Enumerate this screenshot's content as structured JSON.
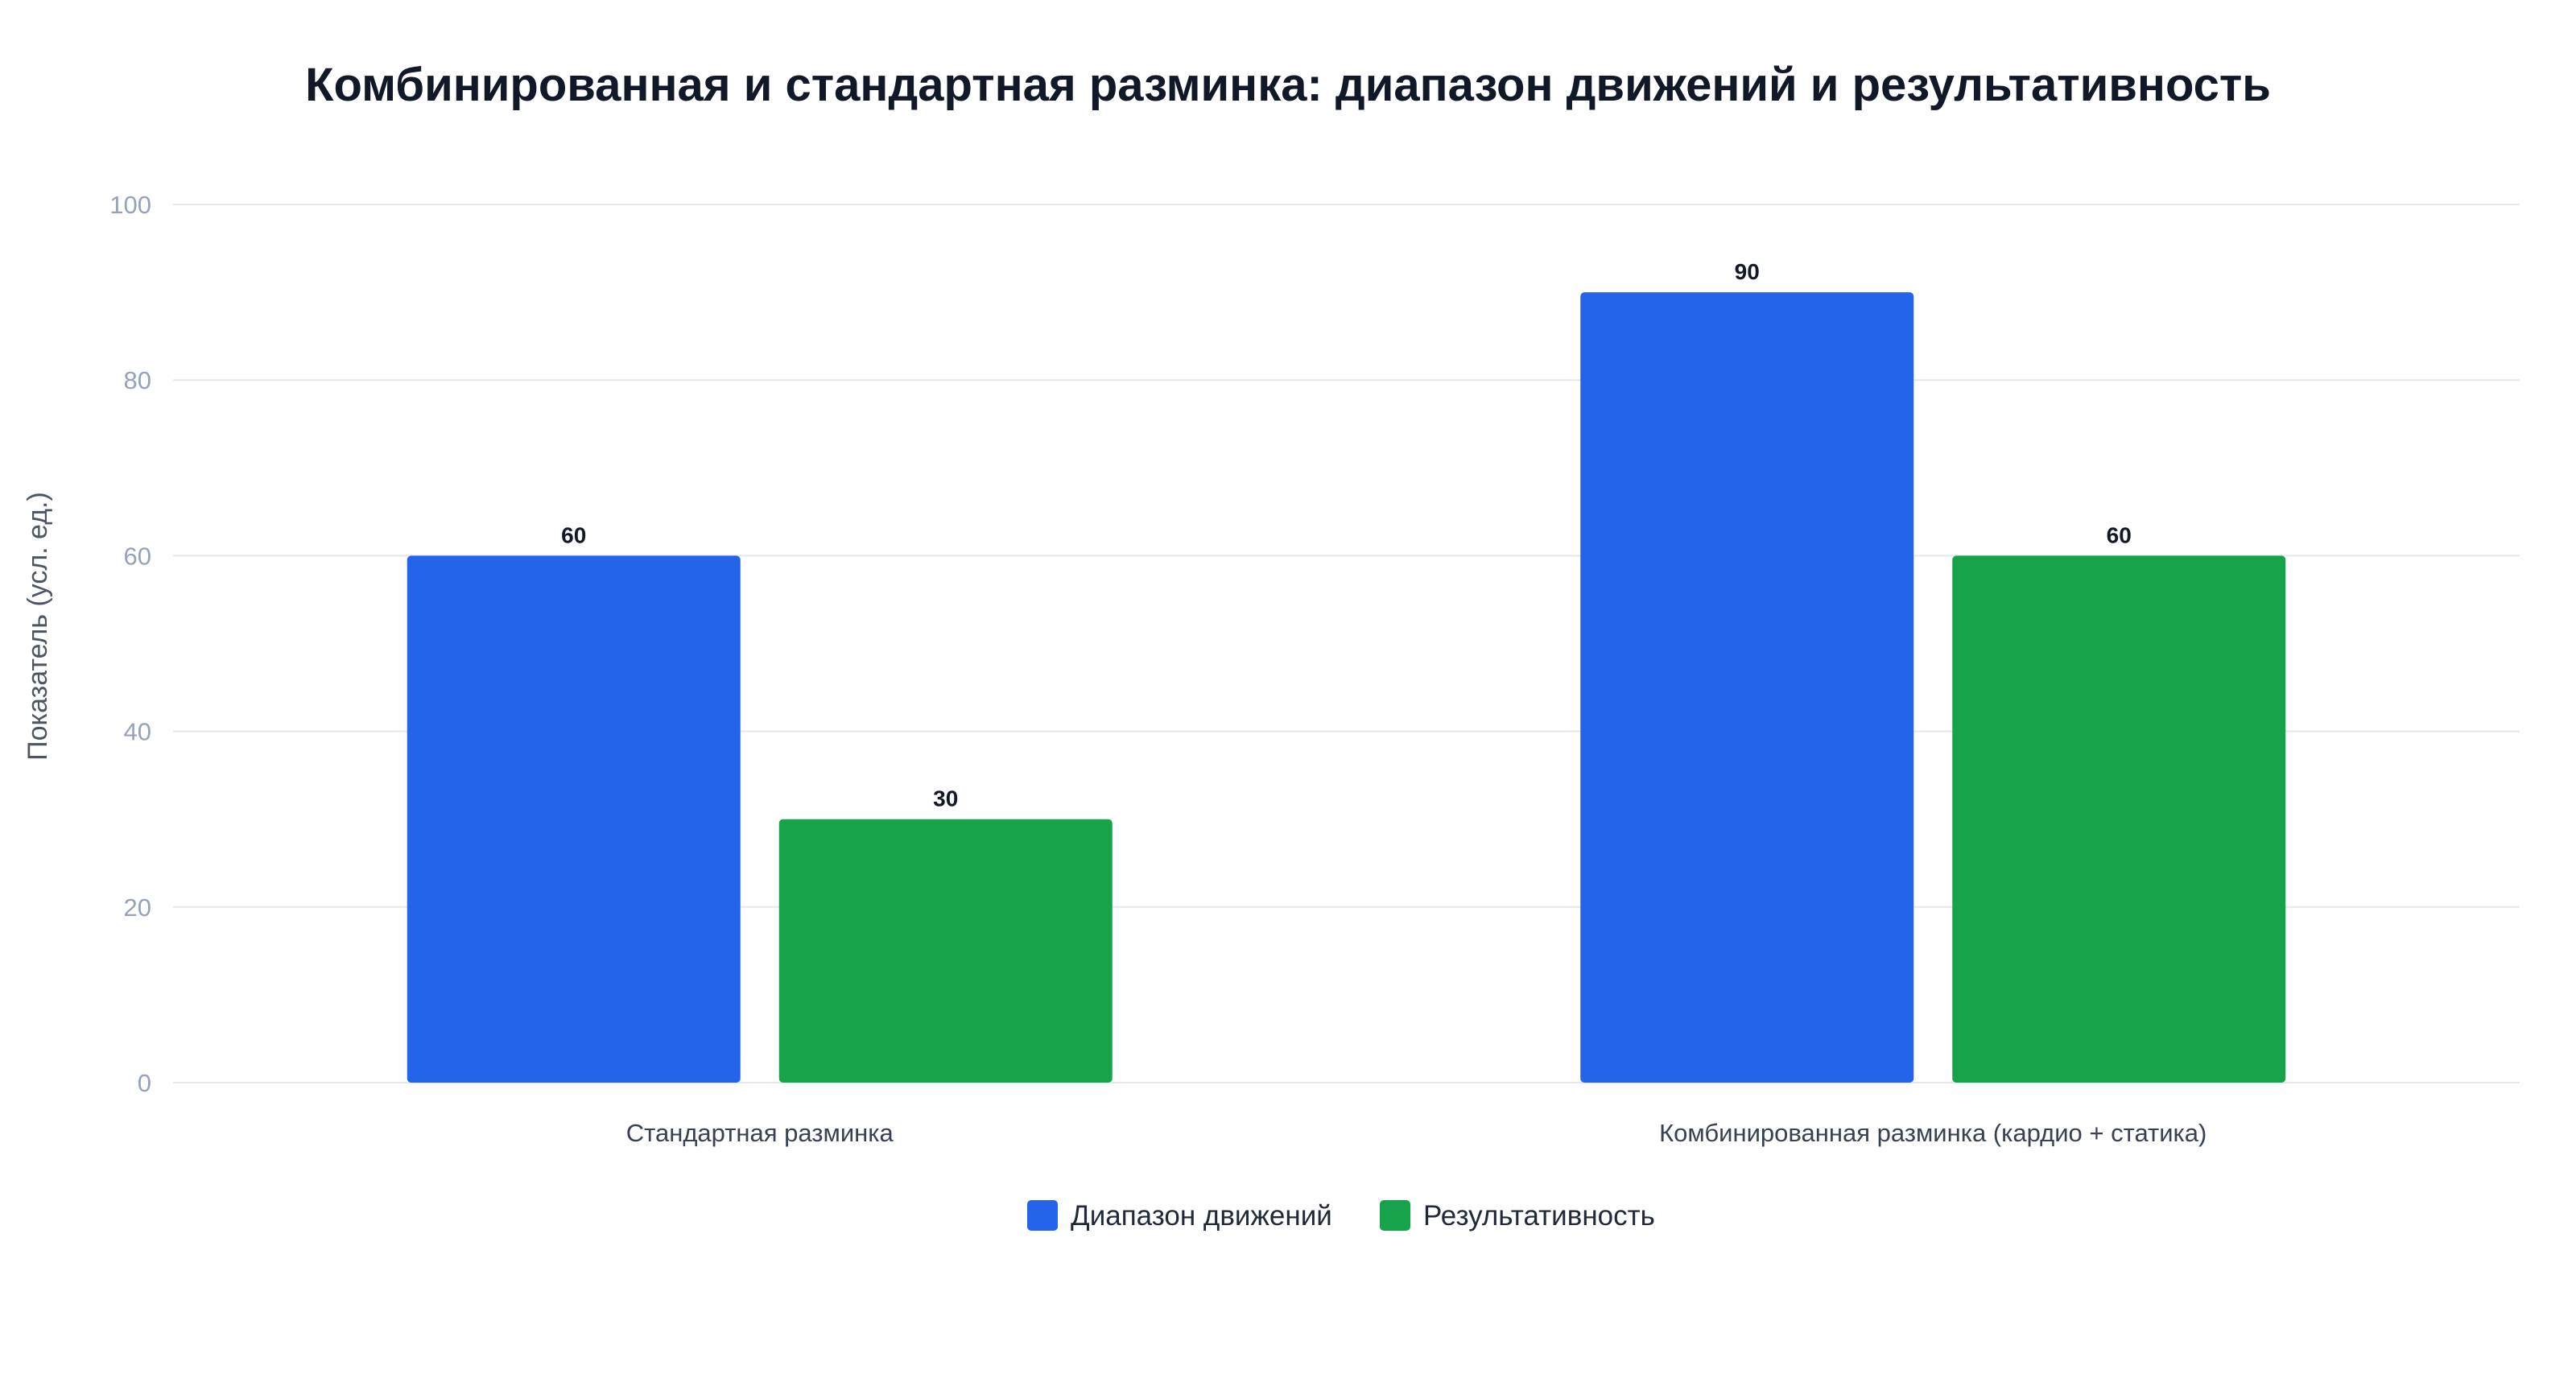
{
  "chart_data": {
    "type": "bar",
    "title": "Комбинированная и стандартная разминка: диапазон движений и результативность",
    "xlabel": "",
    "ylabel": "Показатель (усл. ед.)",
    "ylim": [
      0,
      100
    ],
    "yticks": [
      0,
      20,
      40,
      60,
      80,
      100
    ],
    "grid": true,
    "legend_position": "bottom",
    "categories": [
      "Стандартная разминка",
      "Комбинированная разминка (кардио + статика)"
    ],
    "series": [
      {
        "name": "Диапазон движений",
        "color": "#2563eb",
        "values": [
          60,
          90
        ]
      },
      {
        "name": "Результативность",
        "color": "#16a34a",
        "values": [
          30,
          60
        ]
      }
    ]
  }
}
